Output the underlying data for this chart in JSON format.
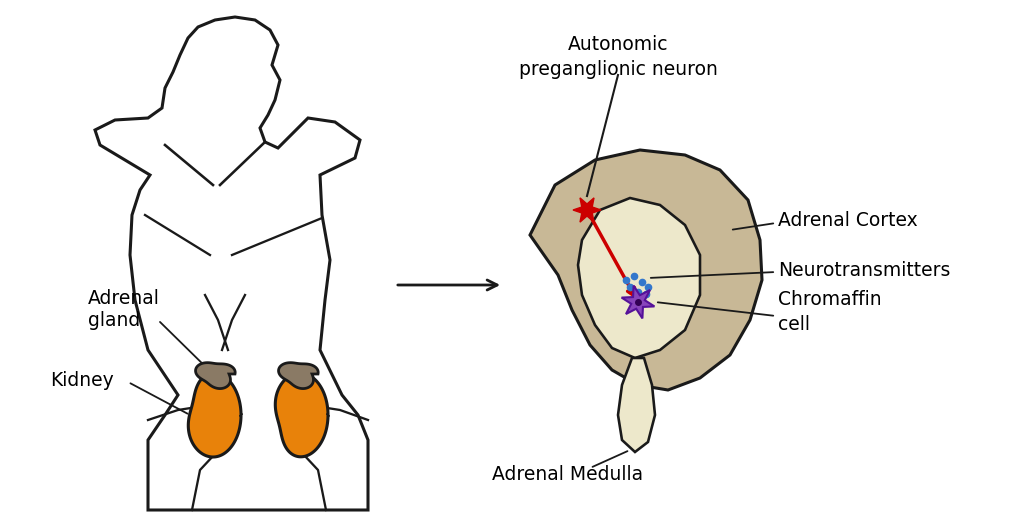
{
  "bg_color": "#ffffff",
  "body_color": "#1a1a1a",
  "kidney_color": "#e8820a",
  "adrenal_small_color": "#8a7a65",
  "cortex_color": "#c8b896",
  "medulla_color": "#ede8cb",
  "neuron_color": "#cc0000",
  "chromaffin_color": "#8844bb",
  "chromaffin_edge": "#551199",
  "dot_color": "#3377cc",
  "text_color": "#000000",
  "label_adrenal_gland": "Adrenal\ngland",
  "label_kidney": "Kidney",
  "label_autonomic_line1": "Autonomic",
  "label_autonomic_line2": "preganglionic neuron",
  "label_cortex": "Adrenal Cortex",
  "label_neurotrans": "Neurotransmitters",
  "label_chromaffin": "Chromaffin\ncell",
  "label_medulla": "Adrenal Medulla",
  "fontsize": 13.5
}
